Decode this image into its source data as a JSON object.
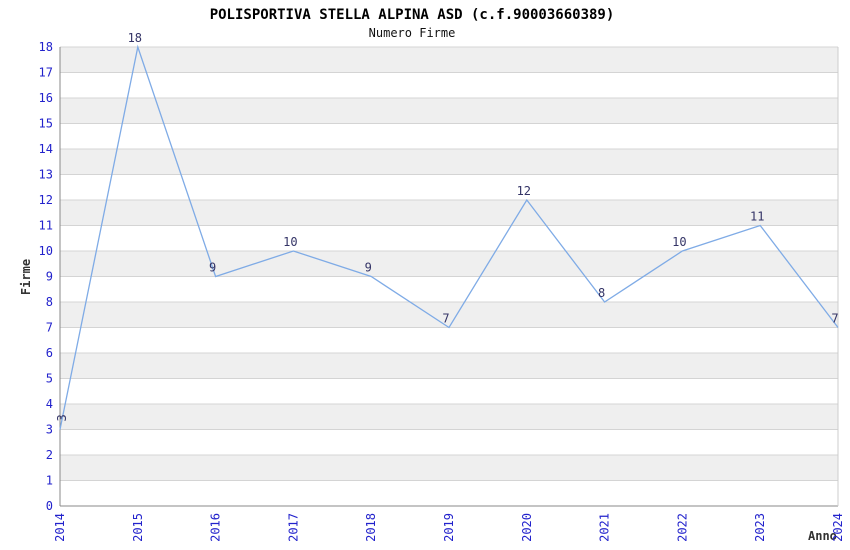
{
  "header": {
    "title": "POLISPORTIVA STELLA ALPINA ASD (c.f.90003660389)",
    "subtitle": "Numero Firme"
  },
  "chart_data": {
    "type": "line",
    "title": "POLISPORTIVA STELLA ALPINA ASD (c.f.90003660389)",
    "subtitle": "Numero Firme",
    "xlabel": "Anno",
    "ylabel": "Firme",
    "categories": [
      "2014",
      "2015",
      "2016",
      "2017",
      "2018",
      "2019",
      "2020",
      "2021",
      "2022",
      "2023",
      "2024"
    ],
    "values": [
      3,
      18,
      9,
      10,
      9,
      7,
      12,
      8,
      10,
      11,
      7
    ],
    "ylim": [
      0,
      18
    ],
    "ytick_step": 1,
    "grid": "horizontal",
    "alternating_bands": true,
    "point_labels_shown": true,
    "legend": null,
    "colors": {
      "line": "#7FABE6",
      "tick_label": "#2222CC",
      "point_label": "#333366",
      "band": "#EFEFEF",
      "grid": "#D4D4D4",
      "axis": "#888888",
      "border": "#CCCCCC",
      "title": "#000000",
      "axis_title": "#333333",
      "background": "#FFFFFF"
    }
  }
}
